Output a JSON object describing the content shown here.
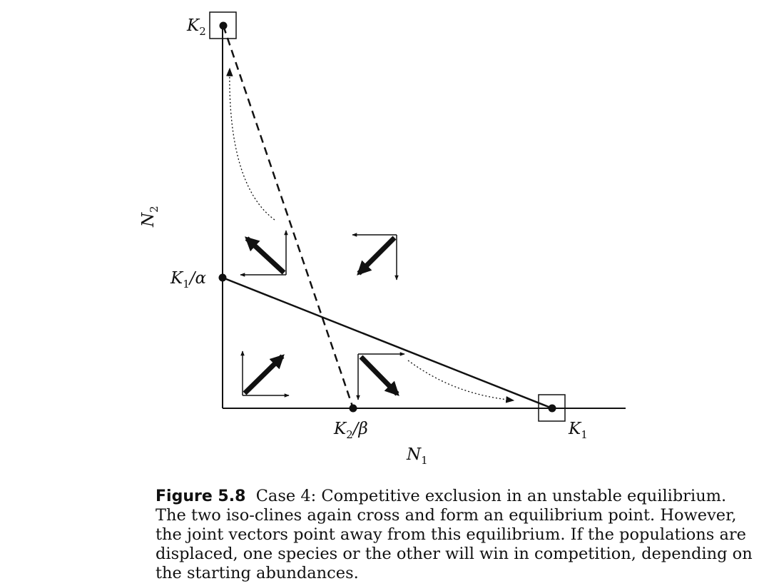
{
  "figure": {
    "axis_labels": {
      "x": {
        "base": "N",
        "sub": "1"
      },
      "y": {
        "base": "N",
        "sub": "2"
      }
    },
    "point_labels": {
      "K2_top": {
        "base": "K",
        "sub": "2",
        "tail": ""
      },
      "K1_alpha": {
        "base": "K",
        "sub": "1",
        "tail": "/α"
      },
      "K2_beta": {
        "base": "K",
        "sub": "2",
        "tail": "/β"
      },
      "K1_right": {
        "base": "K",
        "sub": "1",
        "tail": ""
      }
    }
  },
  "caption": {
    "label": "Figure 5.8",
    "text": "Case 4: Competitive exclusion in an unstable equilibrium. The two iso-clines again cross and form an equilibrium point. However, the joint vectors point away from this equilibrium. If the populations are displaced, one species or the other will win in competition, depending on the starting abundances."
  }
}
